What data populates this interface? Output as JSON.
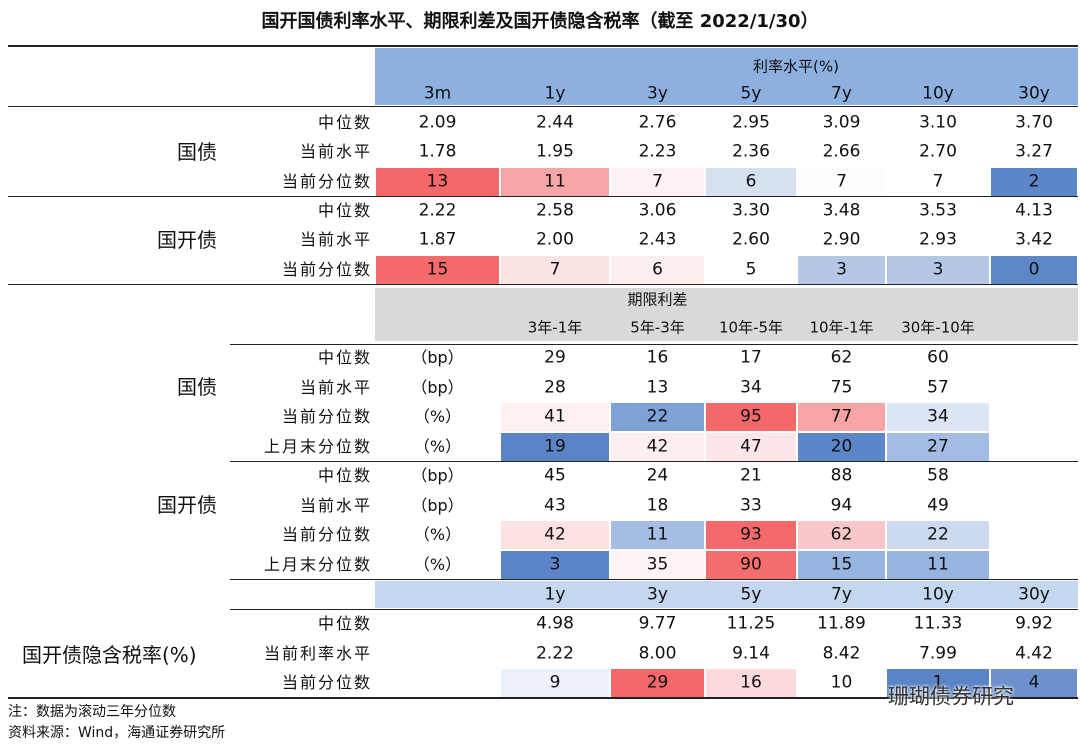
{
  "title": "国开国债利率水平、期限利差及国开债隐含税率（截至 2022/1/30）",
  "rates": {
    "header": "利率水平(%)",
    "columns": [
      "3m",
      "1y",
      "3y",
      "5y",
      "7y",
      "10y",
      "30y"
    ],
    "groups": [
      {
        "name": "国债",
        "rows": [
          {
            "label": "中位数",
            "values": [
              "2.09",
              "2.44",
              "2.76",
              "2.95",
              "3.09",
              "3.10",
              "3.70"
            ]
          },
          {
            "label": "当前水平",
            "values": [
              "1.78",
              "1.95",
              "2.23",
              "2.36",
              "2.66",
              "2.70",
              "3.27"
            ]
          },
          {
            "label": "当前分位数",
            "values": [
              "13",
              "11",
              "7",
              "6",
              "7",
              "7",
              "2"
            ],
            "colors": [
              "#f4686a",
              "#f7a6a8",
              "#fdf2f3",
              "#d6e0f0",
              "#fdfdfe",
              "#ffffff",
              "#5b86c8"
            ]
          }
        ]
      },
      {
        "name": "国开债",
        "rows": [
          {
            "label": "中位数",
            "values": [
              "2.22",
              "2.58",
              "3.06",
              "3.30",
              "3.48",
              "3.53",
              "4.13"
            ]
          },
          {
            "label": "当前水平",
            "values": [
              "1.87",
              "2.00",
              "2.43",
              "2.60",
              "2.90",
              "2.93",
              "3.42"
            ]
          },
          {
            "label": "当前分位数",
            "values": [
              "15",
              "7",
              "6",
              "5",
              "3",
              "3",
              "0"
            ],
            "colors": [
              "#f56b6c",
              "#fce4e5",
              "#fdeeee",
              "#ffffff",
              "#b4c7e7",
              "#b4c7e7",
              "#5d87c7"
            ]
          }
        ]
      }
    ]
  },
  "spreads": {
    "header": "期限利差",
    "columns": [
      "3年-1年",
      "5年-3年",
      "10年-5年",
      "10年-1年",
      "30年-10年"
    ],
    "groups": [
      {
        "name": "国债",
        "rows": [
          {
            "label": "中位数",
            "unit": "（bp）",
            "values": [
              "29",
              "16",
              "17",
              "62",
              "60"
            ]
          },
          {
            "label": "当前水平",
            "unit": "（bp）",
            "values": [
              "28",
              "13",
              "34",
              "75",
              "57"
            ]
          },
          {
            "label": "当前分位数",
            "unit": "（%）",
            "values": [
              "41",
              "22",
              "95",
              "77",
              "34"
            ],
            "colors": [
              "#fdf0f1",
              "#7ea1d6",
              "#f4686a",
              "#f7a4a6",
              "#dce5f3"
            ]
          },
          {
            "label": "上月末分位数",
            "unit": "（%）",
            "values": [
              "19",
              "42",
              "47",
              "20",
              "27"
            ],
            "colors": [
              "#5a84c6",
              "#fdeef0",
              "#fce6e8",
              "#5b86c8",
              "#a4bce3"
            ]
          }
        ]
      },
      {
        "name": "国开债",
        "rows": [
          {
            "label": "中位数",
            "unit": "（bp）",
            "values": [
              "45",
              "24",
              "21",
              "88",
              "58"
            ]
          },
          {
            "label": "当前水平",
            "unit": "（bp）",
            "values": [
              "43",
              "18",
              "33",
              "94",
              "49"
            ]
          },
          {
            "label": "当前分位数",
            "unit": "（%）",
            "values": [
              "42",
              "11",
              "93",
              "62",
              "22"
            ],
            "colors": [
              "#fde1e3",
              "#a6bde3",
              "#f4696b",
              "#f9c7c9",
              "#ccd9ef"
            ]
          },
          {
            "label": "上月末分位数",
            "unit": "（%）",
            "values": [
              "3",
              "35",
              "90",
              "15",
              "11"
            ],
            "colors": [
              "#5a84c6",
              "#fdf3f4",
              "#f56d6f",
              "#97b3df",
              "#97b3df"
            ]
          }
        ]
      }
    ]
  },
  "tax": {
    "name": "国开债隐含税率(%)",
    "columns": [
      "1y",
      "3y",
      "5y",
      "7y",
      "10y",
      "30y"
    ],
    "rows": [
      {
        "label": "中位数",
        "values": [
          "4.98",
          "9.77",
          "11.25",
          "11.89",
          "11.33",
          "9.92"
        ]
      },
      {
        "label": "当前利率水平",
        "values": [
          "2.22",
          "8.00",
          "9.14",
          "8.42",
          "7.99",
          "4.42"
        ]
      },
      {
        "label": "当前分位数",
        "values": [
          "9",
          "29",
          "16",
          "10",
          "1",
          "4"
        ],
        "colors": [
          "#edf1fa",
          "#f4686a",
          "#fbd9dc",
          "#ffffff",
          "#5a84c6",
          "#6c91cc"
        ]
      }
    ]
  },
  "notes": [
    "注：数据为滚动三年分位数",
    "资料来源：Wind，海通证券研究所"
  ],
  "watermark": "珊瑚债券研究"
}
